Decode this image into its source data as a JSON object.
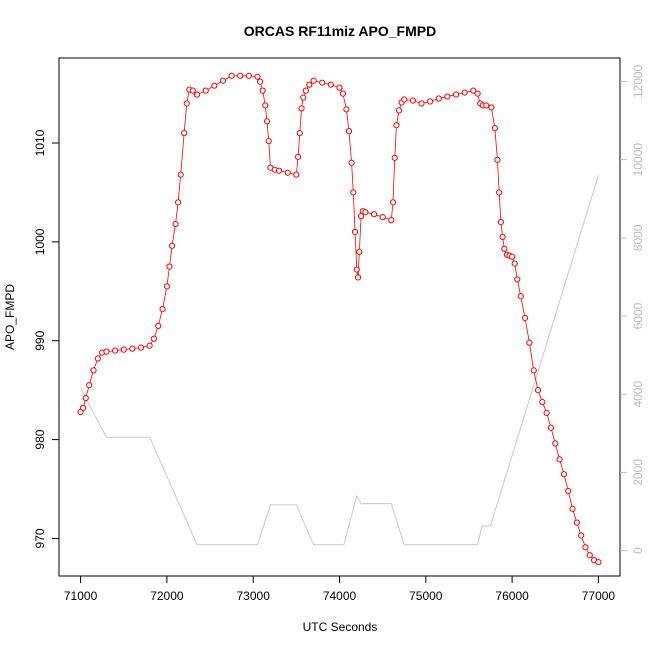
{
  "chart_data": {
    "type": "line",
    "title": "ORCAS RF11miz APO_FMPD",
    "xlabel": "UTC Seconds",
    "ylabel": "APO_FMPD",
    "xlim": [
      70750,
      77250
    ],
    "ylim": [
      966.2,
      1018.6
    ],
    "y2lim": [
      -650,
      12600
    ],
    "x_ticks": [
      71000,
      72000,
      73000,
      74000,
      75000,
      76000,
      77000
    ],
    "y_ticks": [
      970,
      980,
      990,
      1000,
      1010
    ],
    "y2_ticks": [
      0,
      2000,
      4000,
      6000,
      8000,
      10000,
      12000
    ],
    "grid": false,
    "colors": {
      "primary": "#ff0000",
      "secondary": "#c8c8c8",
      "axis": "#000000",
      "y2_axis": "#bbbbbb"
    },
    "series": [
      {
        "axis": "left",
        "style": "points-lines",
        "x": [
          71000,
          71030,
          71060,
          71100,
          71150,
          71200,
          71250,
          71300,
          71400,
          71500,
          71600,
          71700,
          71800,
          71850,
          71900,
          71950,
          72000,
          72030,
          72060,
          72100,
          72130,
          72160,
          72200,
          72230,
          72260,
          72300,
          72350,
          72450,
          72550,
          72650,
          72750,
          72850,
          72950,
          73050,
          73080,
          73110,
          73140,
          73160,
          73180,
          73200,
          73250,
          73300,
          73400,
          73500,
          73520,
          73540,
          73560,
          73580,
          73610,
          73650,
          73700,
          73800,
          73900,
          74000,
          74040,
          74080,
          74110,
          74140,
          74160,
          74180,
          74200,
          74215,
          74230,
          74250,
          74270,
          74300,
          74400,
          74500,
          74600,
          74620,
          74640,
          74660,
          74690,
          74720,
          74750,
          74850,
          74950,
          75050,
          75150,
          75250,
          75350,
          75450,
          75550,
          75600,
          75630,
          75660,
          75700,
          75760,
          75800,
          75830,
          75850,
          75870,
          75890,
          75910,
          75940,
          75970,
          76000,
          76030,
          76060,
          76100,
          76150,
          76200,
          76250,
          76300,
          76350,
          76400,
          76450,
          76500,
          76550,
          76600,
          76650,
          76700,
          76750,
          76800,
          76850,
          76900,
          76950,
          77000
        ],
        "y": [
          982.8,
          983.2,
          984.2,
          985.5,
          987.0,
          988.2,
          988.8,
          988.9,
          989.0,
          989.1,
          989.2,
          989.3,
          989.5,
          990.2,
          991.5,
          993.2,
          995.5,
          997.5,
          999.6,
          1001.8,
          1004.0,
          1006.8,
          1011.0,
          1014.0,
          1015.4,
          1015.3,
          1014.9,
          1015.3,
          1015.8,
          1016.3,
          1016.8,
          1016.8,
          1016.8,
          1016.7,
          1016.2,
          1015.3,
          1013.8,
          1012.2,
          1010.2,
          1007.5,
          1007.3,
          1007.2,
          1007.0,
          1006.8,
          1008.6,
          1011.0,
          1013.5,
          1014.6,
          1015.3,
          1015.9,
          1016.3,
          1016.1,
          1015.9,
          1015.6,
          1015.0,
          1013.4,
          1011.2,
          1008.0,
          1005.0,
          1001.0,
          997.2,
          996.4,
          999.0,
          1002.6,
          1003.1,
          1003.0,
          1002.8,
          1002.5,
          1002.2,
          1004.0,
          1008.5,
          1011.8,
          1013.3,
          1014.1,
          1014.4,
          1014.3,
          1014.0,
          1014.2,
          1014.5,
          1014.7,
          1014.9,
          1015.1,
          1015.3,
          1015.0,
          1014.0,
          1013.8,
          1013.8,
          1013.6,
          1011.5,
          1008.3,
          1005.0,
          1002.0,
          1000.5,
          999.3,
          998.7,
          998.6,
          998.5,
          997.8,
          996.2,
          994.5,
          992.3,
          989.8,
          987.0,
          985.0,
          983.8,
          982.7,
          981.2,
          979.6,
          978.0,
          976.5,
          974.8,
          973.0,
          971.6,
          970.3,
          969.1,
          968.3,
          967.8,
          967.6
        ]
      },
      {
        "axis": "right",
        "style": "line",
        "x": [
          71000,
          71300,
          71800,
          72350,
          73050,
          73200,
          73500,
          73600,
          73700,
          74050,
          74200,
          74250,
          74600,
          74750,
          75600,
          75650,
          75750,
          77000
        ],
        "y": [
          4150,
          2900,
          2900,
          150,
          150,
          1170,
          1170,
          650,
          150,
          150,
          1400,
          1200,
          1200,
          150,
          150,
          620,
          640,
          9600
        ]
      }
    ]
  }
}
